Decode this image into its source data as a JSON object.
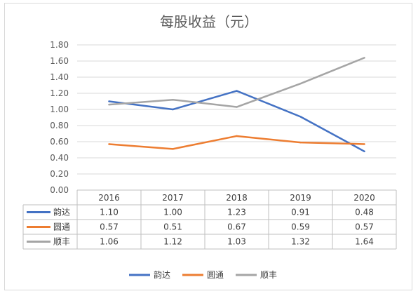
{
  "chart_data": {
    "type": "line",
    "title": "每股收益（元）",
    "categories": [
      "2016",
      "2017",
      "2018",
      "2019",
      "2020"
    ],
    "ylim": [
      0,
      1.8
    ],
    "yticks": [
      "0.00",
      "0.20",
      "0.40",
      "0.60",
      "0.80",
      "1.00",
      "1.20",
      "1.40",
      "1.60",
      "1.80"
    ],
    "grid": true,
    "legend_position": "bottom",
    "data_table": true,
    "series": [
      {
        "name": "韵达",
        "color": "#4472c4",
        "values": [
          1.1,
          1.0,
          1.23,
          0.91,
          0.48
        ],
        "labels": [
          "1.10",
          "1.00",
          "1.23",
          "0.91",
          "0.48"
        ]
      },
      {
        "name": "圆通",
        "color": "#ed7d31",
        "values": [
          0.57,
          0.51,
          0.67,
          0.59,
          0.57
        ],
        "labels": [
          "0.57",
          "0.51",
          "0.67",
          "0.59",
          "0.57"
        ]
      },
      {
        "name": "顺丰",
        "color": "#a5a5a5",
        "values": [
          1.06,
          1.12,
          1.03,
          1.32,
          1.64
        ],
        "labels": [
          "1.06",
          "1.12",
          "1.03",
          "1.32",
          "1.64"
        ]
      }
    ]
  }
}
